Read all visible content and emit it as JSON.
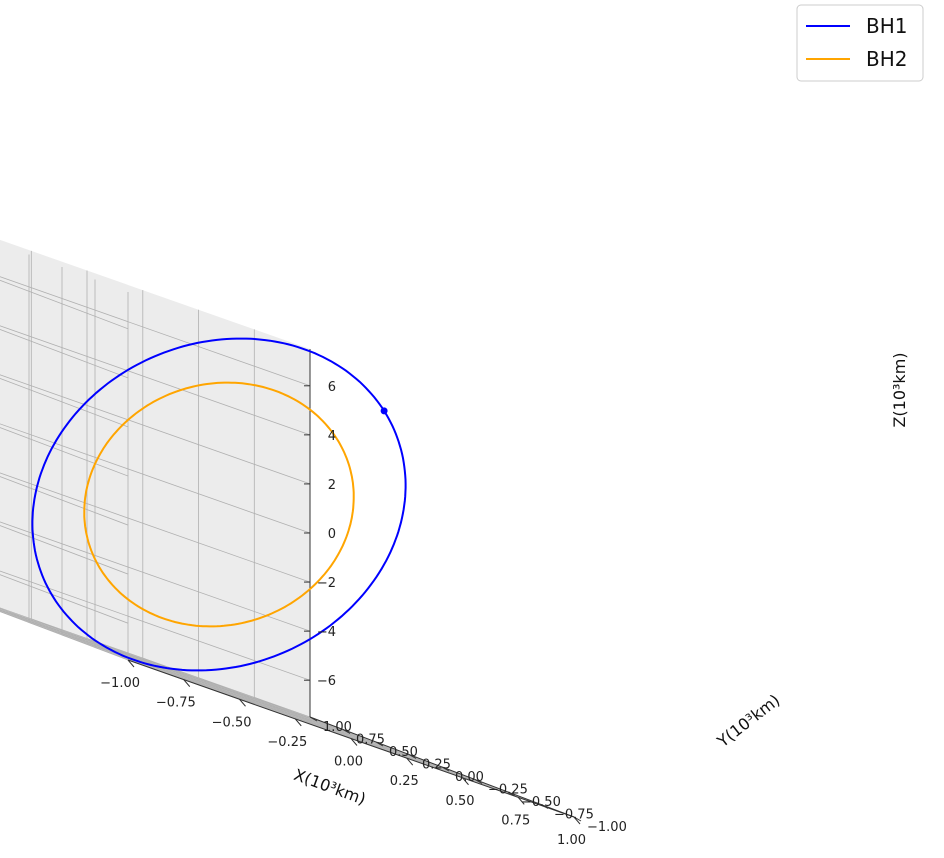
{
  "chart_data": {
    "type": "line",
    "projection": "3d",
    "xlabel": "X(10³km)",
    "ylabel": "Y(10³km)",
    "zlabel": "Z(10³km)",
    "xlim": [
      -1.0,
      1.0
    ],
    "ylim": [
      -1.0,
      1.0
    ],
    "zlim": [
      -7.5,
      7.5
    ],
    "x_ticks": [
      "−1.00",
      "−0.75",
      "−0.50",
      "−0.25",
      "0.00",
      "0.25",
      "0.50",
      "0.75",
      "1.00"
    ],
    "y_ticks": [
      "−1.00",
      "−0.75",
      "−0.50",
      "−0.25",
      "0.00",
      "0.25",
      "0.50",
      "0.75",
      "1.00"
    ],
    "z_ticks": [
      "−6",
      "−4",
      "−2",
      "0",
      "2",
      "4",
      "6"
    ],
    "grid": true,
    "legend_position": "top-right",
    "series": [
      {
        "name": "BH1",
        "color": "#0000ff",
        "shape": "closed orbit",
        "radius_xy": 0.72,
        "amplitude_z": 7.5,
        "marker": "end point"
      },
      {
        "name": "BH2",
        "color": "#ffa500",
        "shape": "closed orbit",
        "radius_xy": 0.52,
        "amplitude_z": 5.4
      }
    ]
  }
}
